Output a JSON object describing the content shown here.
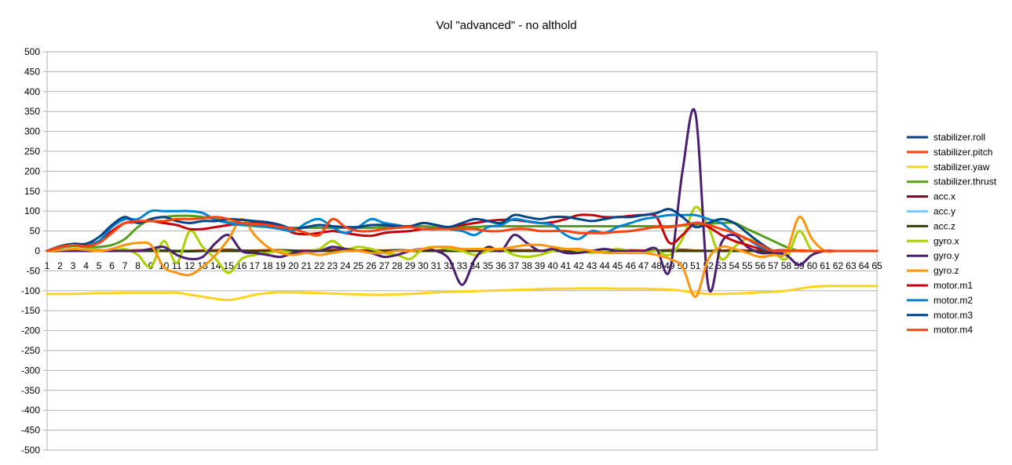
{
  "chart_data": {
    "type": "line",
    "title": "Vol \"advanced\" - no althold",
    "xlabel": "",
    "ylabel": "",
    "ylim": [
      -500,
      500
    ],
    "yticks": [
      500,
      450,
      400,
      350,
      300,
      250,
      200,
      150,
      100,
      50,
      0,
      -50,
      -100,
      -150,
      -200,
      -250,
      -300,
      -350,
      -400,
      -450,
      -500
    ],
    "categories": [
      "1",
      "2",
      "3",
      "4",
      "5",
      "6",
      "7",
      "8",
      "9",
      "10",
      "11",
      "12",
      "13",
      "14",
      "15",
      "16",
      "17",
      "18",
      "19",
      "20",
      "21",
      "22",
      "23",
      "24",
      "25",
      "26",
      "27",
      "28",
      "29",
      "30",
      "31",
      "32",
      "33",
      "34",
      "35",
      "36",
      "37",
      "38",
      "39",
      "40",
      "41",
      "42",
      "43",
      "44",
      "45",
      "46",
      "47",
      "48",
      "49",
      "50",
      "51",
      "52",
      "53",
      "54",
      "55",
      "56",
      "57",
      "58",
      "59",
      "60",
      "61",
      "62",
      "63",
      "64",
      "65"
    ],
    "grid": "horizontal",
    "legend_position": "right",
    "series": [
      {
        "name": "stabilizer.roll",
        "color": "#004586",
        "values": [
          0,
          2,
          3,
          3,
          2,
          1,
          0,
          1,
          2,
          1,
          0,
          -1,
          0,
          2,
          3,
          1,
          0,
          1,
          2,
          1,
          0,
          1,
          3,
          2,
          1,
          0,
          1,
          2,
          1,
          0,
          1,
          2,
          3,
          1,
          0,
          1,
          2,
          1,
          0,
          1,
          2,
          1,
          0,
          1,
          2,
          1,
          0,
          1,
          2,
          3,
          1,
          0,
          1,
          2,
          1,
          0,
          1,
          2,
          1,
          0,
          0,
          0,
          0,
          0,
          0
        ]
      },
      {
        "name": "stabilizer.pitch",
        "color": "#ff420e",
        "values": [
          0,
          1,
          2,
          2,
          1,
          0,
          1,
          2,
          1,
          0,
          -1,
          0,
          1,
          2,
          1,
          0,
          1,
          2,
          1,
          0,
          1,
          2,
          1,
          0,
          1,
          2,
          1,
          0,
          1,
          2,
          1,
          0,
          1,
          2,
          1,
          0,
          1,
          2,
          1,
          0,
          1,
          2,
          1,
          0,
          1,
          2,
          1,
          0,
          1,
          2,
          1,
          0,
          1,
          2,
          1,
          0,
          1,
          2,
          1,
          0,
          0,
          0,
          0,
          0,
          0
        ]
      },
      {
        "name": "stabilizer.yaw",
        "color": "#ffd320",
        "values": [
          -108,
          -108,
          -108,
          -107,
          -106,
          -106,
          -105,
          -105,
          -105,
          -105,
          -105,
          -110,
          -115,
          -120,
          -123,
          -118,
          -110,
          -106,
          -104,
          -104,
          -105,
          -106,
          -107,
          -108,
          -109,
          -110,
          -110,
          -109,
          -108,
          -106,
          -104,
          -103,
          -102,
          -101,
          -100,
          -99,
          -98,
          -97,
          -96,
          -95,
          -95,
          -94,
          -94,
          -94,
          -95,
          -95,
          -95,
          -96,
          -97,
          -100,
          -105,
          -108,
          -108,
          -107,
          -106,
          -104,
          -103,
          -100,
          -95,
          -90,
          -88,
          -88,
          -88,
          -88,
          -88
        ]
      },
      {
        "name": "stabilizer.thrust",
        "color": "#579d1c",
        "values": [
          0,
          8,
          12,
          10,
          10,
          15,
          30,
          60,
          80,
          85,
          88,
          88,
          85,
          80,
          72,
          66,
          62,
          60,
          58,
          58,
          58,
          58,
          58,
          58,
          58,
          58,
          60,
          62,
          62,
          62,
          60,
          60,
          60,
          60,
          62,
          62,
          62,
          62,
          62,
          62,
          62,
          62,
          62,
          62,
          62,
          62,
          62,
          62,
          62,
          64,
          66,
          68,
          70,
          70,
          55,
          40,
          25,
          10,
          0,
          0,
          0,
          0,
          0,
          0,
          0
        ]
      },
      {
        "name": "acc.x",
        "color": "#7e0021",
        "values": [
          0,
          0,
          0,
          0,
          0,
          0,
          0,
          0,
          0,
          0,
          0,
          0,
          0,
          0,
          0,
          0,
          0,
          0,
          0,
          0,
          0,
          0,
          0,
          0,
          0,
          0,
          0,
          0,
          0,
          0,
          0,
          0,
          0,
          0,
          0,
          0,
          0,
          0,
          0,
          0,
          0,
          0,
          0,
          0,
          0,
          0,
          0,
          0,
          0,
          0,
          0,
          0,
          0,
          0,
          0,
          0,
          0,
          0,
          0,
          0,
          0,
          0,
          0,
          0,
          0
        ]
      },
      {
        "name": "acc.y",
        "color": "#83caff",
        "values": [
          0,
          0,
          0,
          0,
          0,
          0,
          0,
          0,
          0,
          0,
          0,
          0,
          0,
          0,
          0,
          0,
          0,
          0,
          0,
          0,
          0,
          0,
          0,
          0,
          0,
          0,
          0,
          0,
          0,
          0,
          0,
          0,
          0,
          0,
          0,
          0,
          0,
          0,
          0,
          0,
          0,
          0,
          0,
          0,
          0,
          0,
          0,
          0,
          0,
          0,
          0,
          0,
          0,
          0,
          0,
          0,
          0,
          0,
          0,
          0,
          0,
          0,
          0,
          0,
          0
        ]
      },
      {
        "name": "acc.z",
        "color": "#314004",
        "values": [
          0,
          0,
          0,
          0,
          0,
          0,
          0,
          0,
          0,
          0,
          0,
          0,
          0,
          0,
          0,
          0,
          0,
          0,
          0,
          0,
          0,
          0,
          0,
          0,
          0,
          0,
          0,
          0,
          0,
          0,
          0,
          0,
          0,
          0,
          0,
          0,
          0,
          0,
          0,
          0,
          0,
          0,
          0,
          0,
          0,
          0,
          0,
          0,
          0,
          0,
          0,
          0,
          0,
          0,
          0,
          0,
          0,
          0,
          0,
          0,
          0,
          0,
          0,
          0,
          0
        ]
      },
      {
        "name": "gyro.x",
        "color": "#aecf00",
        "values": [
          0,
          0,
          2,
          4,
          3,
          0,
          5,
          -10,
          -40,
          25,
          -30,
          50,
          10,
          -20,
          -55,
          -20,
          -10,
          -5,
          0,
          -5,
          0,
          5,
          25,
          5,
          10,
          5,
          -5,
          -10,
          -20,
          5,
          10,
          5,
          0,
          -10,
          0,
          5,
          -10,
          -15,
          -10,
          0,
          5,
          0,
          -5,
          0,
          5,
          0,
          -5,
          0,
          -10,
          30,
          110,
          60,
          -20,
          10,
          30,
          15,
          0,
          -20,
          50,
          0,
          0,
          0,
          0,
          0,
          0
        ]
      },
      {
        "name": "gyro.y",
        "color": "#4b1f6f",
        "values": [
          0,
          0,
          0,
          0,
          0,
          0,
          0,
          0,
          5,
          10,
          -10,
          -20,
          -15,
          20,
          40,
          0,
          -5,
          -10,
          -15,
          -5,
          0,
          0,
          10,
          5,
          0,
          -5,
          -15,
          -10,
          0,
          5,
          0,
          -20,
          -85,
          -20,
          10,
          0,
          40,
          20,
          0,
          5,
          -5,
          -5,
          0,
          5,
          0,
          0,
          0,
          5,
          -50,
          200,
          345,
          -90,
          20,
          40,
          10,
          -5,
          -5,
          -10,
          -35,
          -10,
          0,
          0,
          0,
          0,
          0
        ]
      },
      {
        "name": "gyro.z",
        "color": "#ff950e",
        "values": [
          0,
          2,
          5,
          3,
          0,
          5,
          15,
          20,
          15,
          -40,
          -55,
          -60,
          -40,
          -10,
          30,
          80,
          40,
          10,
          -5,
          -10,
          -5,
          -10,
          -5,
          0,
          0,
          -5,
          -5,
          0,
          0,
          5,
          10,
          10,
          5,
          5,
          5,
          5,
          10,
          15,
          15,
          10,
          5,
          5,
          0,
          -5,
          -5,
          -5,
          -5,
          -10,
          -20,
          -40,
          -115,
          -20,
          10,
          5,
          -5,
          -15,
          -10,
          -5,
          85,
          30,
          0,
          0,
          0,
          0,
          0
        ]
      },
      {
        "name": "motor.m1",
        "color": "#c5000b",
        "values": [
          0,
          10,
          15,
          15,
          25,
          50,
          70,
          72,
          75,
          70,
          65,
          55,
          55,
          60,
          65,
          68,
          70,
          68,
          62,
          45,
          42,
          45,
          50,
          45,
          40,
          38,
          45,
          48,
          50,
          55,
          55,
          60,
          65,
          70,
          75,
          78,
          78,
          74,
          70,
          72,
          80,
          90,
          90,
          85,
          85,
          88,
          90,
          85,
          20,
          40,
          70,
          60,
          40,
          25,
          15,
          5,
          0,
          0,
          0,
          0,
          0,
          0,
          0,
          0,
          0
        ]
      },
      {
        "name": "motor.m2",
        "color": "#0084d1",
        "values": [
          0,
          10,
          15,
          15,
          25,
          60,
          80,
          80,
          100,
          100,
          100,
          100,
          95,
          78,
          70,
          65,
          65,
          60,
          55,
          50,
          70,
          80,
          60,
          45,
          60,
          80,
          70,
          65,
          60,
          70,
          65,
          55,
          50,
          40,
          60,
          65,
          80,
          75,
          70,
          65,
          40,
          30,
          50,
          45,
          60,
          70,
          80,
          85,
          90,
          90,
          90,
          80,
          70,
          45,
          30,
          10,
          0,
          0,
          0,
          0,
          0,
          0,
          0,
          0,
          0
        ]
      },
      {
        "name": "motor.m3",
        "color": "#004586",
        "values": [
          0,
          12,
          18,
          18,
          35,
          65,
          85,
          70,
          80,
          85,
          75,
          70,
          75,
          75,
          80,
          78,
          75,
          72,
          65,
          55,
          60,
          65,
          62,
          60,
          60,
          65,
          65,
          62,
          62,
          70,
          65,
          60,
          70,
          80,
          75,
          70,
          90,
          85,
          80,
          85,
          85,
          80,
          75,
          80,
          85,
          85,
          90,
          95,
          105,
          85,
          60,
          70,
          80,
          70,
          45,
          20,
          0,
          0,
          0,
          0,
          0,
          0,
          0,
          0,
          0
        ]
      },
      {
        "name": "motor.m4",
        "color": "#ff420e",
        "values": [
          0,
          10,
          15,
          12,
          20,
          45,
          70,
          75,
          75,
          75,
          80,
          80,
          82,
          85,
          80,
          70,
          68,
          65,
          60,
          55,
          45,
          40,
          80,
          60,
          50,
          50,
          55,
          58,
          60,
          55,
          55,
          55,
          55,
          55,
          50,
          50,
          55,
          55,
          50,
          50,
          50,
          45,
          45,
          45,
          48,
          50,
          55,
          60,
          60,
          65,
          70,
          65,
          55,
          45,
          30,
          15,
          0,
          0,
          0,
          0,
          0,
          0,
          0,
          0,
          0
        ]
      }
    ]
  }
}
